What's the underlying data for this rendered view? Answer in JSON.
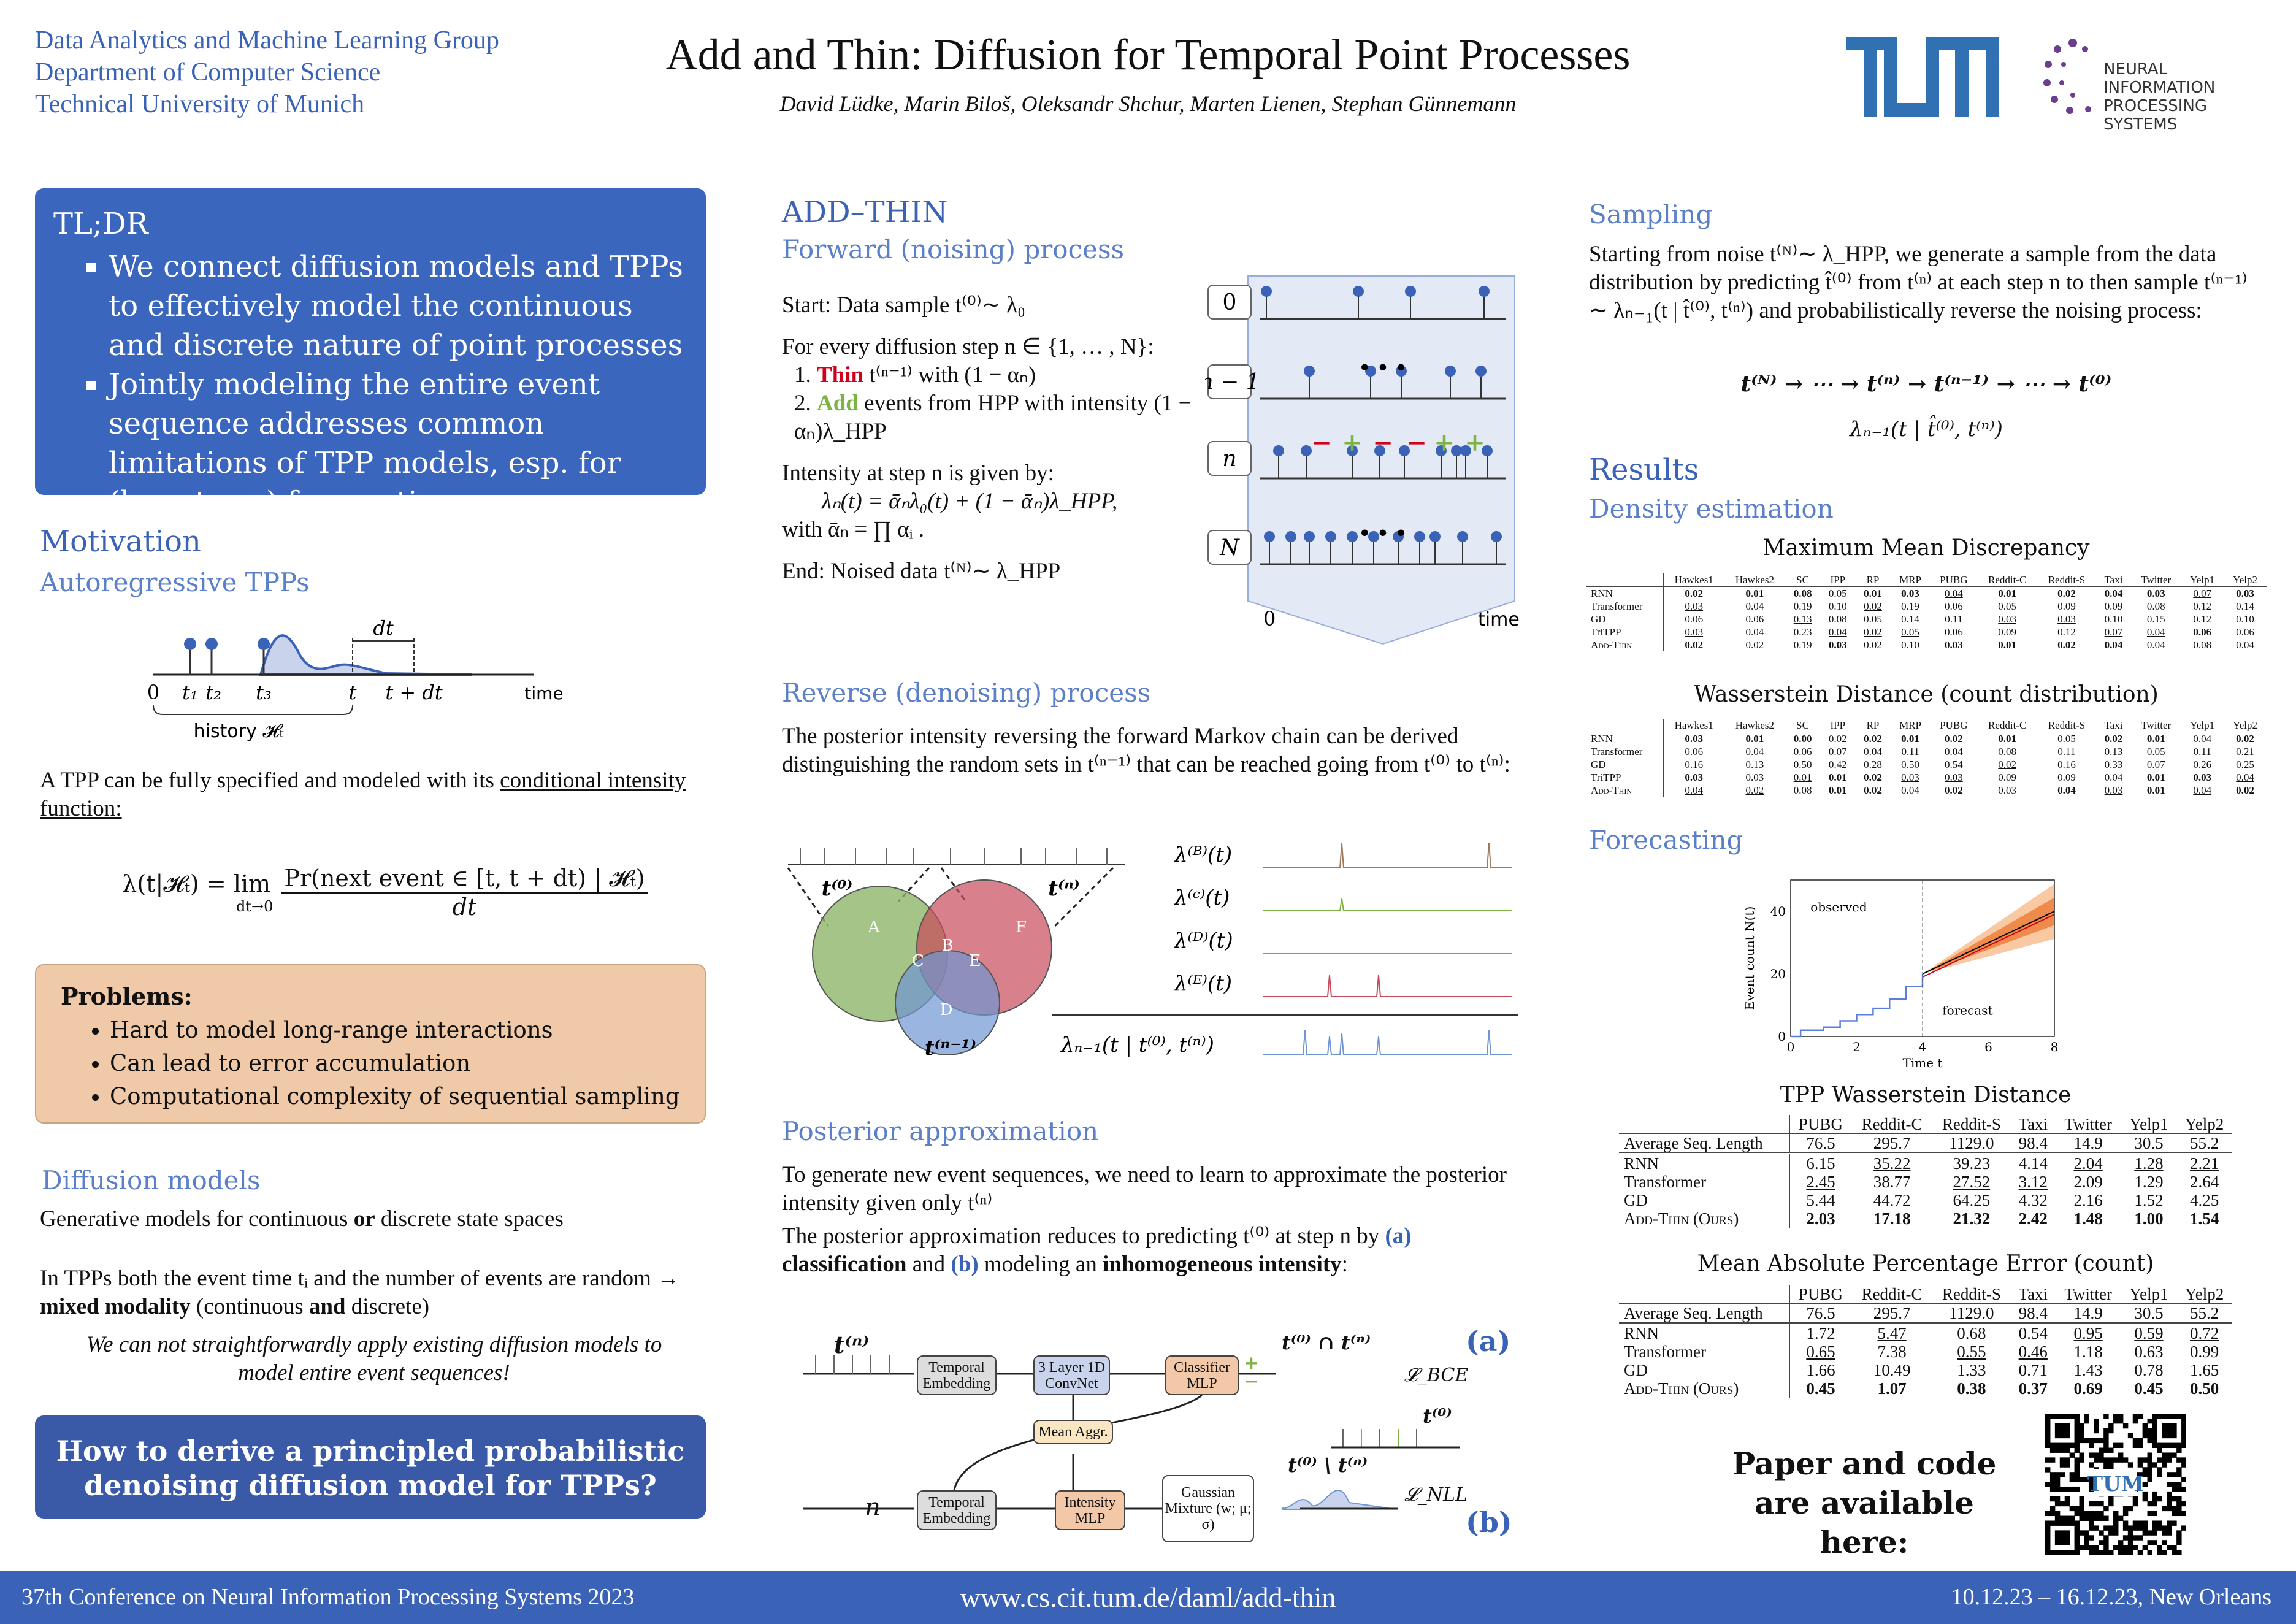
{
  "header": {
    "affiliation": [
      "Data Analytics and Machine Learning Group",
      "Department of Computer Science",
      "Technical University of Munich"
    ],
    "title": "Add and Thin: Diffusion for Temporal Point Processes",
    "authors": "David Lüdke, Marin Biloš, Oleksandr Shchur, Marten Lienen, Stephan Günnemann",
    "logo_tum": "TUM",
    "logo_neurips": "NEURAL INFORMATION PROCESSING SYSTEMS"
  },
  "tldr": {
    "title": "TL;DR",
    "items": [
      "We connect diffusion models and TPPs to effectively model the continuous and discrete nature of point processes",
      "Jointly modeling the entire event sequence addresses common limitations of TPP models, esp. for (long-term) forecasting"
    ]
  },
  "motivation": {
    "title": "Motivation",
    "subtitle": "Autoregressive TPPs",
    "fig": {
      "labels": [
        "0",
        "t₁",
        "t₂",
        "t₃",
        "t",
        "t + dt",
        "dt",
        "time",
        "history 𝓗ₜ"
      ]
    },
    "text1": "A TPP can be fully specified and modeled with its ",
    "text1_link": "conditional intensity function:",
    "formula_lhs": "λ(t|𝓗ₜ) = lim",
    "formula_sub": "dt→0",
    "formula_num": "Pr(next event ∈ [t, t + dt) | 𝓗ₜ)",
    "formula_den": "dt"
  },
  "problems": {
    "title": "Problems:",
    "items": [
      "Hard to model long-range interactions",
      "Can lead to error accumulation",
      "Computational complexity of sequential sampling"
    ]
  },
  "diffusion": {
    "title": "Diffusion models",
    "p1_a": "Generative models for continuous ",
    "p1_b": "or",
    "p1_c": " discrete state spaces",
    "p2_a": "In TPPs both the event time tᵢ and the number of events are random → ",
    "p2_b": "mixed modality",
    "p2_c": " (continuous ",
    "p2_d": "and",
    "p2_e": " discrete)",
    "italic": "We can not straightforwardly apply existing diffusion models to model entire event sequences!"
  },
  "question": "How to derive a principled probabilistic denoising diffusion model for TPPs?",
  "addthin": {
    "title": "ADD–THIN",
    "forward_title": "Forward (noising) process",
    "start": "Start: Data sample t⁽⁰⁾∼ λ₀",
    "every": "For every diffusion step n ∈ {1, … , N}:",
    "step1_kw": "Thin",
    "step1": " t⁽ⁿ⁻¹⁾ with  (1 − αₙ)",
    "step2_kw": "Add",
    "step2": " events from HPP with intensity (1 − αₙ)λ_HPP",
    "intensity": "Intensity at step n is given by:",
    "eq": "λₙ(t) = ᾱₙλ₀(t) + (1 − ᾱₙ)λ_HPP,",
    "with": "with ᾱₙ = ∏ αᵢ .",
    "end": "End: Noised data t⁽ᴺ⁾∼ λ_HPP",
    "fig_labels": [
      "0",
      "n − 1",
      "n",
      "N",
      "0",
      "time"
    ],
    "signs": [
      "−",
      "+",
      "−",
      "−",
      "+",
      "+"
    ],
    "dots": "• • •"
  },
  "reverse": {
    "title": "Reverse (denoising) process",
    "text": "The posterior intensity reversing the forward Markov chain can be derived distinguishing the random sets in t⁽ⁿ⁻¹⁾ that can be reached going from t⁽⁰⁾ to t⁽ⁿ⁾:",
    "venn": [
      "A",
      "B",
      "C",
      "D",
      "E",
      "F",
      "t⁽⁰⁾",
      "t⁽ⁿ⁾",
      "t⁽ⁿ⁻¹⁾"
    ],
    "lambdas": [
      "λ⁽ᴮ⁾(t)",
      "λ⁽ᶜ⁾(t)",
      "λ⁽ᴰ⁾(t)",
      "λ⁽ᴱ⁾(t)",
      "λₙ₋₁(t | t⁽⁰⁾, t⁽ⁿ⁾)"
    ]
  },
  "posterior": {
    "title": "Posterior approximation",
    "p1": "To generate new event sequences, we need to learn to approximate the posterior intensity given only t⁽ⁿ⁾",
    "p2_a": "The posterior approximation reduces to predicting t⁽⁰⁾ at step n by ",
    "p2_b": "(a)",
    "p2_c": " classification",
    "p2_d": " and ",
    "p2_e": "(b)",
    "p2_f": " modeling an ",
    "p2_g": "inhomogeneous intensity",
    "boxes": [
      "Temporal Embedding",
      "3 Layer 1D ConvNet",
      "Classifier MLP",
      "Mean Aggr.",
      "Temporal Embedding",
      "Intensity MLP",
      "Gaussian Mixture (w; μ; σ)"
    ],
    "labels": [
      "t⁽ⁿ⁾",
      "n",
      "t⁽⁰⁾ ∩ t⁽ⁿ⁾",
      "t⁽⁰⁾ \\ t⁽ⁿ⁾",
      "𝓛_BCE",
      "𝓛_NLL",
      "t⁽⁰⁾",
      "(a)",
      "(b)"
    ],
    "pm": "+ −"
  },
  "sampling": {
    "title": "Sampling",
    "text": "Starting from noise t⁽ᴺ⁾∼ λ_HPP, we generate a sample from the data distribution by predicting t̂⁽⁰⁾ from t⁽ⁿ⁾ at each step n to then sample t⁽ⁿ⁻¹⁾∼ λₙ₋₁(t | t̂⁽⁰⁾, t⁽ⁿ⁾) and probabilistically reverse the noising process:",
    "chain": "t⁽ᴺ⁾ → ⋯ → t⁽ⁿ⁾ → t⁽ⁿ⁻¹⁾ → ⋯ → t⁽⁰⁾",
    "chain_sub": "λₙ₋₁(t | t̂⁽⁰⁾, t⁽ⁿ⁾)"
  },
  "results": {
    "title": "Results",
    "density_title": "Density estimation",
    "forecast_title": "Forecasting"
  },
  "tables": {
    "mmd": {
      "title": "Maximum Mean Discrepancy",
      "columns": [
        "",
        "Hawkes1",
        "Hawkes2",
        "SC",
        "IPP",
        "RP",
        "MRP",
        "PUBG",
        "Reddit-C",
        "Reddit-S",
        "Taxi",
        "Twitter",
        "Yelp1",
        "Yelp2"
      ],
      "rows": [
        {
          "label": "RNN",
          "values": [
            "0.02",
            "0.01",
            "0.08",
            "0.05",
            "0.01",
            "0.03",
            "0.04",
            "0.01",
            "0.02",
            "0.04",
            "0.03",
            "0.07",
            "0.03"
          ],
          "bold": [
            0,
            1,
            2,
            4,
            5,
            7,
            8,
            9,
            10,
            12
          ],
          "underline": [
            6,
            11
          ]
        },
        {
          "label": "Transformer",
          "values": [
            "0.03",
            "0.04",
            "0.19",
            "0.10",
            "0.02",
            "0.19",
            "0.06",
            "0.05",
            "0.09",
            "0.09",
            "0.08",
            "0.12",
            "0.14"
          ],
          "bold": [],
          "underline": [
            0,
            4
          ]
        },
        {
          "label": "GD",
          "values": [
            "0.06",
            "0.06",
            "0.13",
            "0.08",
            "0.05",
            "0.14",
            "0.11",
            "0.03",
            "0.03",
            "0.10",
            "0.15",
            "0.12",
            "0.10"
          ],
          "bold": [],
          "underline": [
            2,
            7,
            8
          ]
        },
        {
          "label": "TriTPP",
          "values": [
            "0.03",
            "0.04",
            "0.23",
            "0.04",
            "0.02",
            "0.05",
            "0.06",
            "0.09",
            "0.12",
            "0.07",
            "0.04",
            "0.06",
            "0.06"
          ],
          "bold": [
            11
          ],
          "underline": [
            0,
            3,
            4,
            5,
            9,
            10
          ]
        },
        {
          "label": "Add-Thin",
          "values": [
            "0.02",
            "0.02",
            "0.19",
            "0.03",
            "0.02",
            "0.10",
            "0.03",
            "0.01",
            "0.02",
            "0.04",
            "0.04",
            "0.08",
            "0.04"
          ],
          "bold": [
            0,
            3,
            6,
            7,
            8,
            9
          ],
          "underline": [
            1,
            4,
            10,
            12
          ]
        }
      ]
    },
    "wd_count": {
      "title": "Wasserstein Distance (count distribution)",
      "columns": [
        "",
        "Hawkes1",
        "Hawkes2",
        "SC",
        "IPP",
        "RP",
        "MRP",
        "PUBG",
        "Reddit-C",
        "Reddit-S",
        "Taxi",
        "Twitter",
        "Yelp1",
        "Yelp2"
      ],
      "rows": [
        {
          "label": "RNN",
          "values": [
            "0.03",
            "0.01",
            "0.00",
            "0.02",
            "0.02",
            "0.01",
            "0.02",
            "0.01",
            "0.05",
            "0.02",
            "0.01",
            "0.04",
            "0.02"
          ],
          "bold": [
            0,
            1,
            2,
            4,
            5,
            6,
            7,
            9,
            10,
            12
          ],
          "underline": [
            3,
            8,
            11
          ]
        },
        {
          "label": "Transformer",
          "values": [
            "0.06",
            "0.04",
            "0.06",
            "0.07",
            "0.04",
            "0.11",
            "0.04",
            "0.08",
            "0.11",
            "0.13",
            "0.05",
            "0.11",
            "0.21"
          ],
          "bold": [],
          "underline": [
            4,
            10
          ]
        },
        {
          "label": "GD",
          "values": [
            "0.16",
            "0.13",
            "0.50",
            "0.42",
            "0.28",
            "0.50",
            "0.54",
            "0.02",
            "0.16",
            "0.33",
            "0.07",
            "0.26",
            "0.25"
          ],
          "bold": [],
          "underline": [
            7
          ]
        },
        {
          "label": "TriTPP",
          "values": [
            "0.03",
            "0.03",
            "0.01",
            "0.01",
            "0.02",
            "0.03",
            "0.03",
            "0.09",
            "0.09",
            "0.04",
            "0.01",
            "0.03",
            "0.04"
          ],
          "bold": [
            0,
            3,
            4,
            10,
            11
          ],
          "underline": [
            2,
            5,
            6,
            12
          ]
        },
        {
          "label": "Add-Thin",
          "values": [
            "0.04",
            "0.02",
            "0.08",
            "0.01",
            "0.02",
            "0.04",
            "0.02",
            "0.03",
            "0.04",
            "0.03",
            "0.01",
            "0.04",
            "0.02"
          ],
          "bold": [
            3,
            4,
            6,
            8,
            10,
            12
          ],
          "underline": [
            0,
            1,
            9,
            11
          ]
        }
      ]
    },
    "tpp_wd": {
      "title": "TPP Wasserstein Distance",
      "columns": [
        "",
        "PUBG",
        "Reddit-C",
        "Reddit-S",
        "Taxi",
        "Twitter",
        "Yelp1",
        "Yelp2"
      ],
      "avg": {
        "label": "Average Seq. Length",
        "values": [
          "76.5",
          "295.7",
          "1129.0",
          "98.4",
          "14.9",
          "30.5",
          "55.2"
        ]
      },
      "rows": [
        {
          "label": "RNN",
          "values": [
            "6.15",
            "35.22",
            "39.23",
            "4.14",
            "2.04",
            "1.28",
            "2.21"
          ],
          "bold": [],
          "underline": [
            1,
            4,
            5,
            6
          ]
        },
        {
          "label": "Transformer",
          "values": [
            "2.45",
            "38.77",
            "27.52",
            "3.12",
            "2.09",
            "1.29",
            "2.64"
          ],
          "bold": [],
          "underline": [
            0,
            2,
            3
          ]
        },
        {
          "label": "GD",
          "values": [
            "5.44",
            "44.72",
            "64.25",
            "4.32",
            "2.16",
            "1.52",
            "4.25"
          ],
          "bold": [],
          "underline": []
        },
        {
          "label": "Add-Thin (Ours)",
          "values": [
            "2.03",
            "17.18",
            "21.32",
            "2.42",
            "1.48",
            "1.00",
            "1.54"
          ],
          "bold": [
            0,
            1,
            2,
            3,
            4,
            5,
            6
          ],
          "underline": []
        }
      ]
    },
    "mape": {
      "title": "Mean Absolute Percentage Error (count)",
      "columns": [
        "",
        "PUBG",
        "Reddit-C",
        "Reddit-S",
        "Taxi",
        "Twitter",
        "Yelp1",
        "Yelp2"
      ],
      "avg": {
        "label": "Average Seq. Length",
        "values": [
          "76.5",
          "295.7",
          "1129.0",
          "98.4",
          "14.9",
          "30.5",
          "55.2"
        ]
      },
      "rows": [
        {
          "label": "RNN",
          "values": [
            "1.72",
            "5.47",
            "0.68",
            "0.54",
            "0.95",
            "0.59",
            "0.72"
          ],
          "bold": [],
          "underline": [
            1,
            4,
            5,
            6
          ]
        },
        {
          "label": "Transformer",
          "values": [
            "0.65",
            "7.38",
            "0.55",
            "0.46",
            "1.18",
            "0.63",
            "0.99"
          ],
          "bold": [],
          "underline": [
            0,
            2,
            3
          ]
        },
        {
          "label": "GD",
          "values": [
            "1.66",
            "10.49",
            "1.33",
            "0.71",
            "1.43",
            "0.78",
            "1.65"
          ],
          "bold": [],
          "underline": []
        },
        {
          "label": "Add-Thin (Ours)",
          "values": [
            "0.45",
            "1.07",
            "0.38",
            "0.37",
            "0.69",
            "0.45",
            "0.50"
          ],
          "bold": [
            0,
            1,
            2,
            3,
            4,
            5,
            6
          ],
          "underline": []
        }
      ]
    }
  },
  "chart_data": {
    "type": "line",
    "xlabel": "Time t",
    "ylabel": "Event count N(t)",
    "xlim": [
      0,
      8
    ],
    "ylim": [
      0,
      50
    ],
    "xticks": [
      0,
      2,
      4,
      6,
      8
    ],
    "yticks": [
      0,
      20,
      40
    ],
    "annotations": [
      "observed",
      "forecast"
    ],
    "split_x": 4,
    "series": [
      {
        "values": [
          [
            0,
            0
          ],
          [
            0.3,
            2
          ],
          [
            1,
            3
          ],
          [
            1.5,
            5
          ],
          [
            2,
            7
          ],
          [
            2.5,
            9
          ],
          [
            3,
            12
          ],
          [
            3.5,
            16
          ],
          [
            4,
            20
          ]
        ]
      },
      {
        "values": [
          [
            4,
            20
          ],
          [
            5,
            25
          ],
          [
            6,
            30
          ],
          [
            7,
            35
          ],
          [
            8,
            40
          ]
        ]
      }
    ]
  },
  "paper_code": "Paper and code are available here:",
  "footer": {
    "left": "37th Conference on Neural Information Processing Systems 2023",
    "center": "www.cs.cit.tum.de/daml/add-thin",
    "right": "10.12.23 – 16.12.23, New Orleans"
  },
  "colors": {
    "primary": "#3a63b7",
    "problems_bg": "#efc9a8",
    "thin": "#d0021b",
    "add": "#7cb342"
  }
}
